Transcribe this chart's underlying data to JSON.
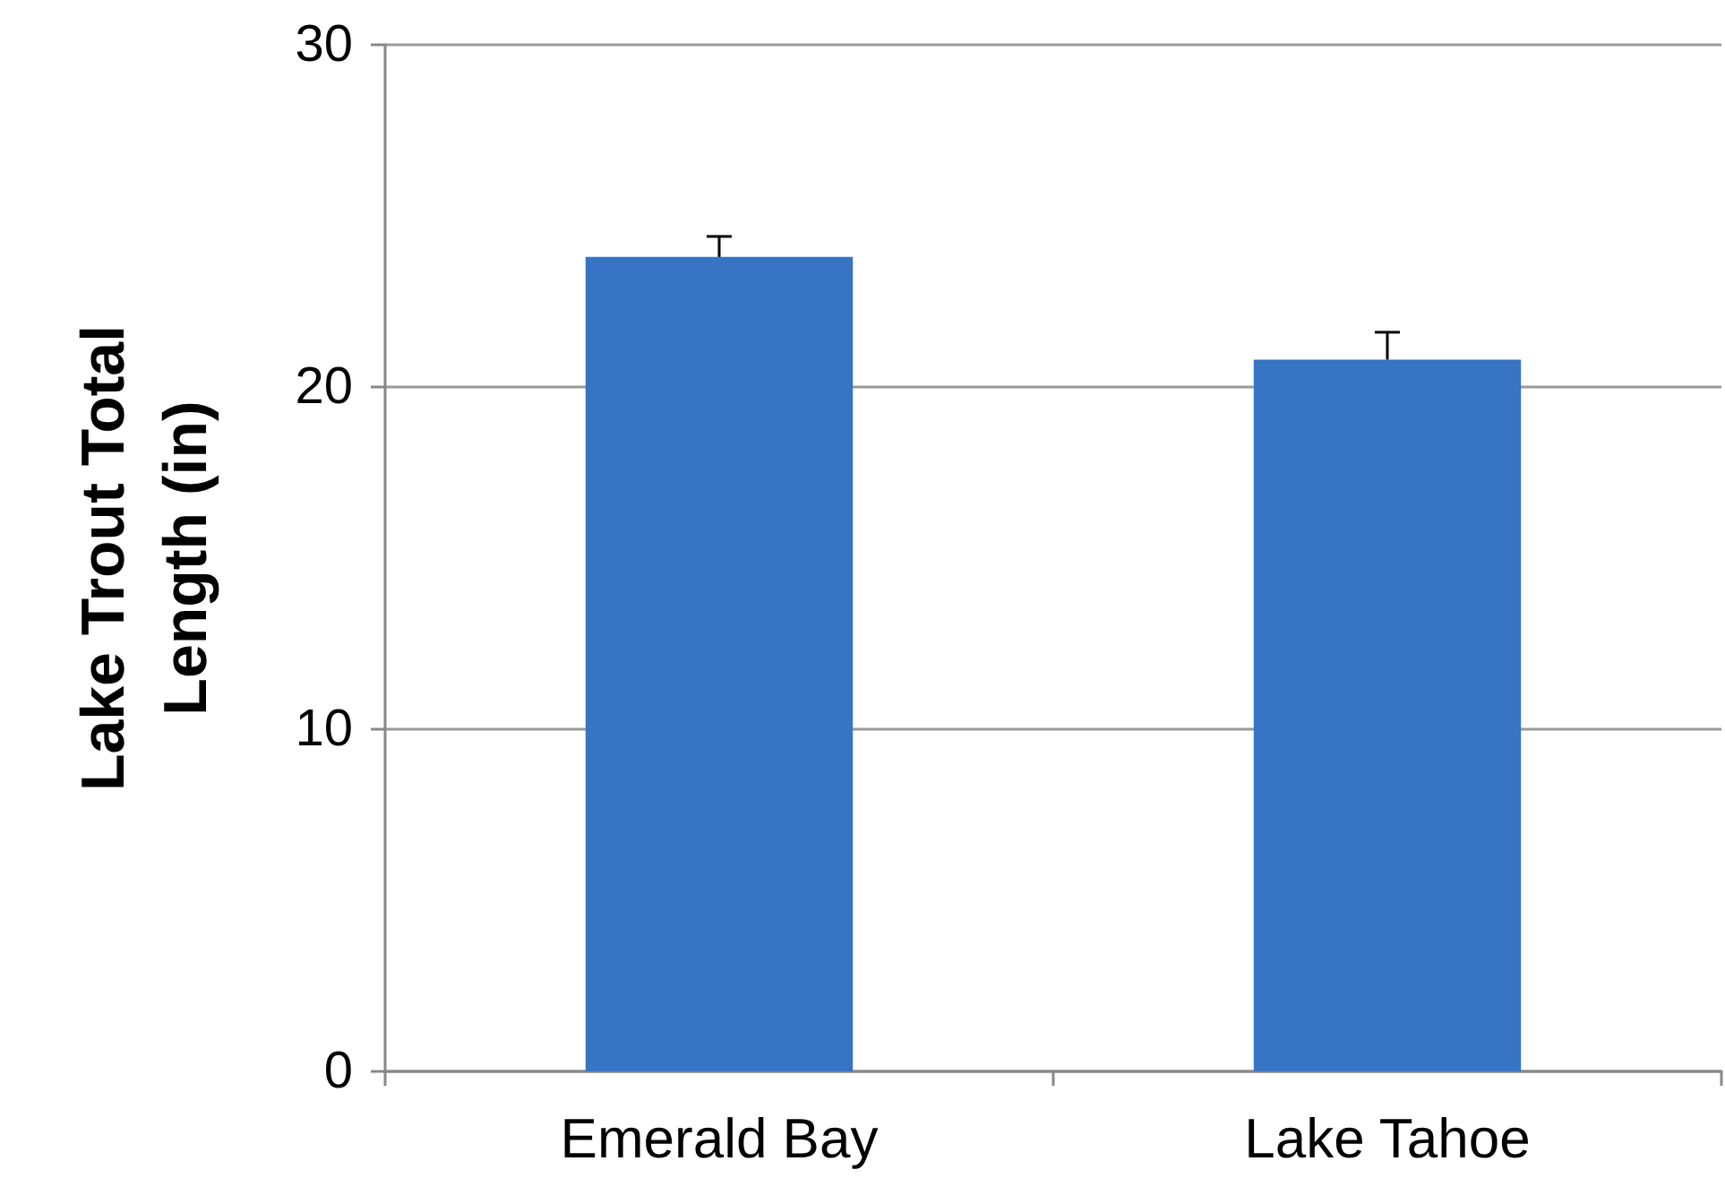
{
  "chart_data": {
    "type": "bar",
    "ylabel": "Lake Trout Total Length (in)",
    "categories": [
      "Emerald Bay",
      "Lake Tahoe"
    ],
    "values": [
      23.8,
      20.8
    ],
    "errors": [
      [
        23.8,
        24.4
      ],
      [
        20.8,
        21.6
      ]
    ],
    "color": "#3774c4",
    "ylim": [
      0,
      30
    ],
    "yticks": [
      0,
      10,
      20,
      30
    ],
    "grid": "y"
  }
}
